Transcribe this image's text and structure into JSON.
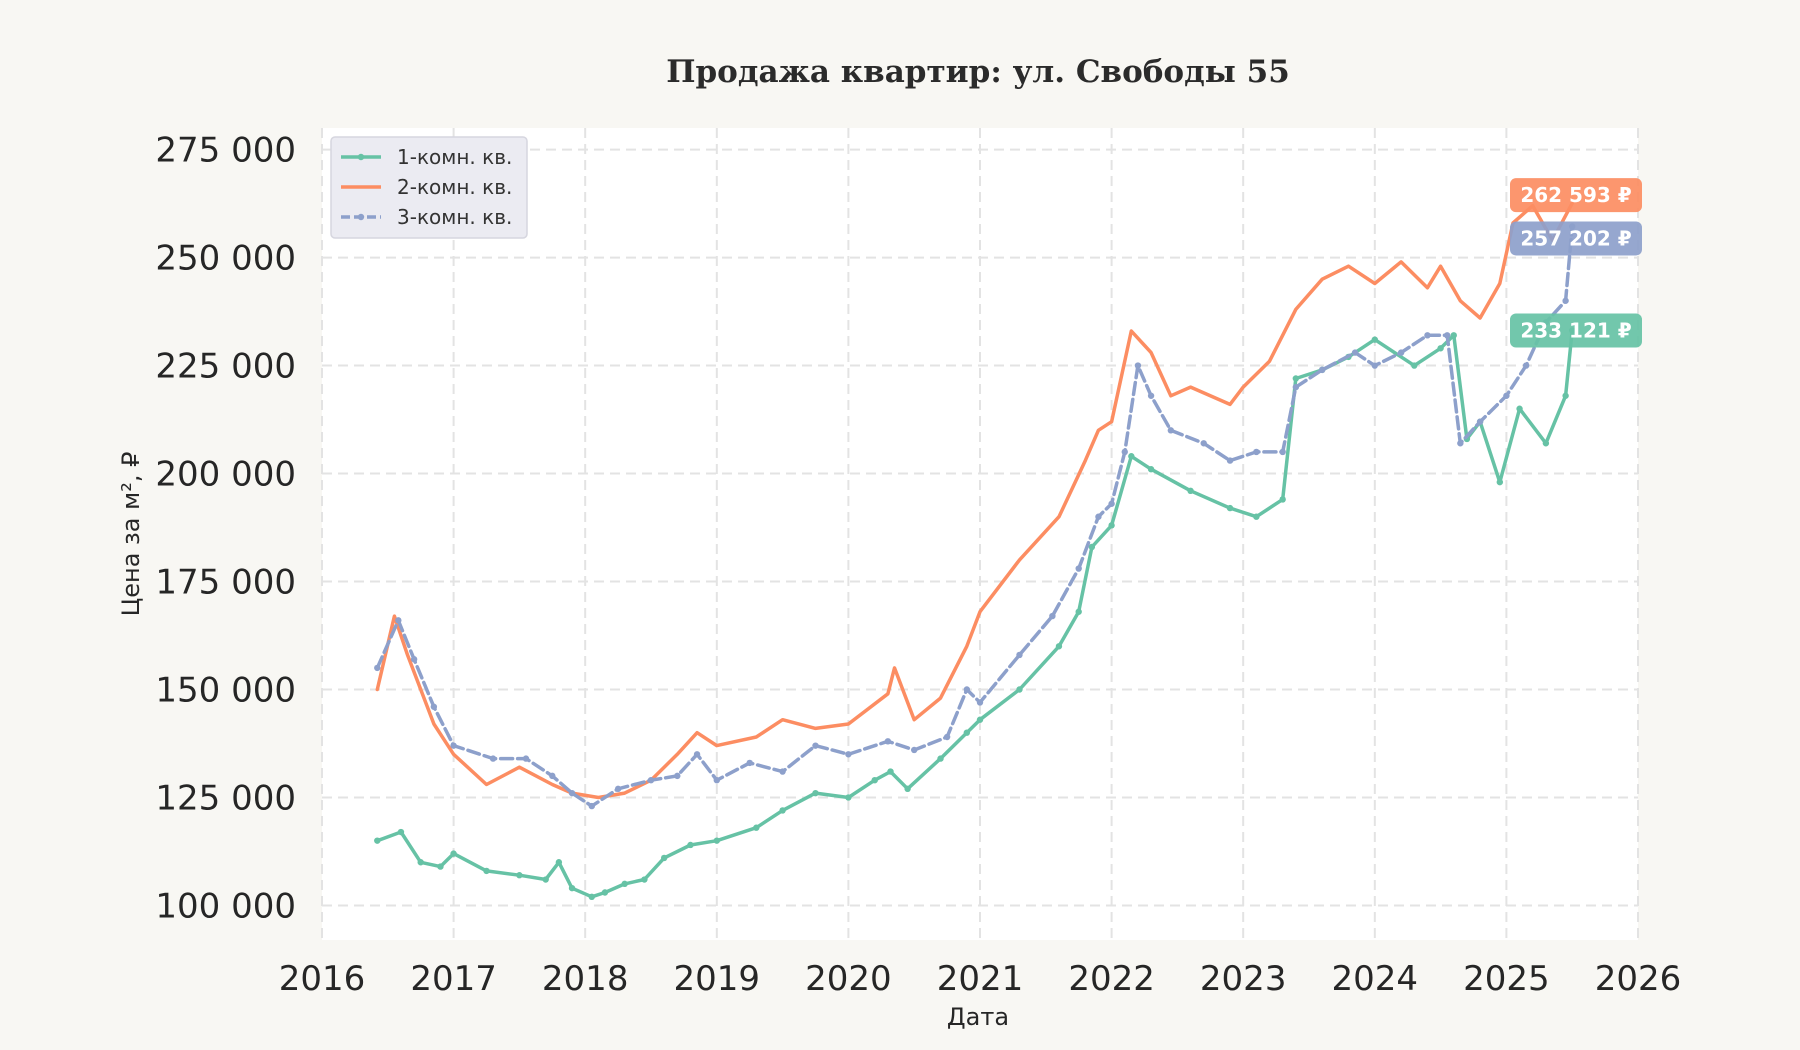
{
  "chart_data": {
    "type": "line",
    "title": "Продажа квартир: ул. Свободы 55",
    "xlabel": "Дата",
    "ylabel": "Цена за м², ₽",
    "xlim": [
      2016.0,
      2026.0
    ],
    "ylim": [
      92000,
      280000
    ],
    "x_ticks": [
      2016,
      2017,
      2018,
      2019,
      2020,
      2021,
      2022,
      2023,
      2024,
      2025,
      2026
    ],
    "y_ticks": [
      100000,
      125000,
      150000,
      175000,
      200000,
      225000,
      250000,
      275000
    ],
    "y_tick_labels": [
      "100 000",
      "125 000",
      "150 000",
      "175 000",
      "200 000",
      "225 000",
      "250 000",
      "275 000"
    ],
    "grid": true,
    "legend_position": "top-left",
    "series": [
      {
        "name": "1-комн. кв.",
        "color": "#66c2a5",
        "style": "solid-markers",
        "x": [
          2016.42,
          2016.6,
          2016.75,
          2016.9,
          2017.0,
          2017.25,
          2017.5,
          2017.7,
          2017.8,
          2017.9,
          2018.05,
          2018.15,
          2018.3,
          2018.45,
          2018.6,
          2018.8,
          2019.0,
          2019.3,
          2019.5,
          2019.75,
          2020.0,
          2020.2,
          2020.32,
          2020.45,
          2020.7,
          2020.9,
          2021.0,
          2021.3,
          2021.6,
          2021.75,
          2021.85,
          2022.0,
          2022.15,
          2022.3,
          2022.6,
          2022.9,
          2023.1,
          2023.3,
          2023.4,
          2023.6,
          2023.8,
          2024.0,
          2024.3,
          2024.5,
          2024.6,
          2024.7,
          2024.8,
          2024.95,
          2025.1,
          2025.3,
          2025.45,
          2025.5
        ],
        "y": [
          115000,
          117000,
          110000,
          109000,
          112000,
          108000,
          107000,
          106000,
          110000,
          104000,
          102000,
          103000,
          105000,
          106000,
          111000,
          114000,
          115000,
          118000,
          122000,
          126000,
          125000,
          129000,
          131000,
          127000,
          134000,
          140000,
          143000,
          150000,
          160000,
          168000,
          183000,
          188000,
          204000,
          201000,
          196000,
          192000,
          190000,
          194000,
          222000,
          224000,
          227000,
          231000,
          225000,
          229000,
          232000,
          208000,
          212000,
          198000,
          215000,
          207000,
          218000,
          233121
        ]
      },
      {
        "name": "2-комн. кв.",
        "color": "#fc8d62",
        "style": "solid",
        "x": [
          2016.42,
          2016.55,
          2016.65,
          2016.85,
          2017.0,
          2017.25,
          2017.5,
          2017.75,
          2017.9,
          2018.1,
          2018.3,
          2018.5,
          2018.7,
          2018.85,
          2019.0,
          2019.3,
          2019.5,
          2019.75,
          2020.0,
          2020.3,
          2020.35,
          2020.5,
          2020.7,
          2020.9,
          2021.0,
          2021.3,
          2021.6,
          2021.8,
          2021.9,
          2022.0,
          2022.15,
          2022.3,
          2022.45,
          2022.6,
          2022.9,
          2023.0,
          2023.2,
          2023.4,
          2023.6,
          2023.8,
          2024.0,
          2024.2,
          2024.4,
          2024.5,
          2024.65,
          2024.8,
          2024.95,
          2025.05,
          2025.2,
          2025.35,
          2025.5
        ],
        "y": [
          150000,
          167000,
          158000,
          142000,
          135000,
          128000,
          132000,
          128000,
          126000,
          125000,
          126000,
          129000,
          135000,
          140000,
          137000,
          139000,
          143000,
          141000,
          142000,
          149000,
          155000,
          143000,
          148000,
          160000,
          168000,
          180000,
          190000,
          203000,
          210000,
          212000,
          233000,
          228000,
          218000,
          220000,
          216000,
          220000,
          226000,
          238000,
          245000,
          248000,
          244000,
          249000,
          243000,
          248000,
          240000,
          236000,
          244000,
          258000,
          262000,
          254000,
          262593
        ]
      },
      {
        "name": "3-комн. кв.",
        "color": "#8da0cb",
        "style": "dashed-markers",
        "x": [
          2016.42,
          2016.58,
          2016.7,
          2016.85,
          2017.0,
          2017.3,
          2017.55,
          2017.75,
          2017.9,
          2018.05,
          2018.25,
          2018.5,
          2018.7,
          2018.85,
          2019.0,
          2019.25,
          2019.5,
          2019.75,
          2020.0,
          2020.3,
          2020.5,
          2020.75,
          2020.9,
          2021.0,
          2021.3,
          2021.55,
          2021.75,
          2021.9,
          2022.0,
          2022.1,
          2022.2,
          2022.3,
          2022.45,
          2022.7,
          2022.9,
          2023.1,
          2023.3,
          2023.4,
          2023.6,
          2023.85,
          2024.0,
          2024.2,
          2024.4,
          2024.55,
          2024.65,
          2024.8,
          2025.0,
          2025.15,
          2025.3,
          2025.45,
          2025.5
        ],
        "y": [
          155000,
          166000,
          157000,
          146000,
          137000,
          134000,
          134000,
          130000,
          126000,
          123000,
          127000,
          129000,
          130000,
          135000,
          129000,
          133000,
          131000,
          137000,
          135000,
          138000,
          136000,
          139000,
          150000,
          147000,
          158000,
          167000,
          178000,
          190000,
          193000,
          205000,
          225000,
          218000,
          210000,
          207000,
          203000,
          205000,
          205000,
          220000,
          224000,
          228000,
          225000,
          228000,
          232000,
          232000,
          207000,
          212000,
          218000,
          225000,
          235000,
          240000,
          257202
        ]
      }
    ],
    "end_labels": [
      {
        "series": "2-комн. кв.",
        "text": "262 593 ₽",
        "color": "#fc8d62"
      },
      {
        "series": "3-комн. кв.",
        "text": "257 202 ₽",
        "color": "#8da0cb"
      },
      {
        "series": "1-комн. кв.",
        "text": "233 121 ₽",
        "color": "#66c2a5"
      }
    ]
  }
}
